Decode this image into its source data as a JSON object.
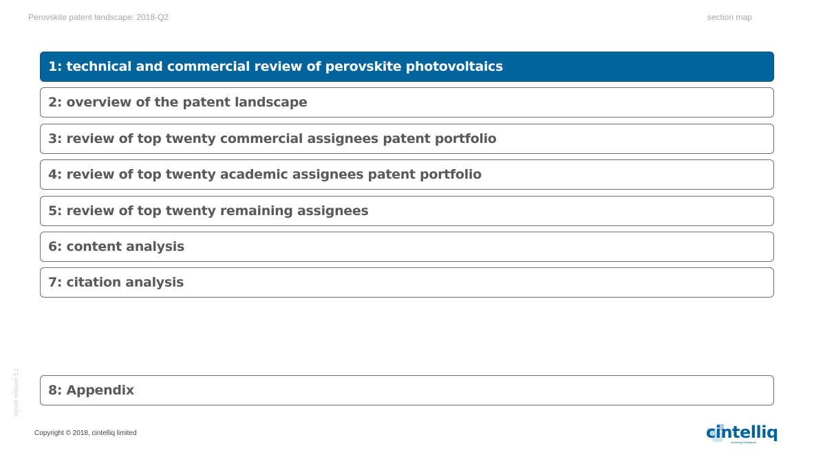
{
  "header": {
    "title": "Perovskite patent landscape: 2018-Q2",
    "right_label": "section map"
  },
  "sections": [
    {
      "label": "1: technical and commercial review of perovskite photovoltaics",
      "active": true
    },
    {
      "label": "2: overview of the patent landscape",
      "active": false
    },
    {
      "label": "3: review of top twenty commercial assignees patent portfolio",
      "active": false
    },
    {
      "label": "4: review of top twenty academic assignees patent portfolio",
      "active": false
    },
    {
      "label": "5: review of top twenty remaining assignees",
      "active": false
    },
    {
      "label": "6: content analysis",
      "active": false
    },
    {
      "label": "7: citation analysis",
      "active": false
    },
    {
      "label": "8: Appendix",
      "active": false
    }
  ],
  "side_label": "layout release 5.1",
  "footer": {
    "copyright": "Copyright © 2018, cintelliq limited"
  },
  "logo": {
    "word": "cintelliq",
    "tagline": "enriching intelligence",
    "icon": "cube-icon"
  },
  "colors": {
    "accent": "#01649c",
    "text": "#595959",
    "border": "#6e6e6e",
    "header_text": "#a6a6a6"
  }
}
